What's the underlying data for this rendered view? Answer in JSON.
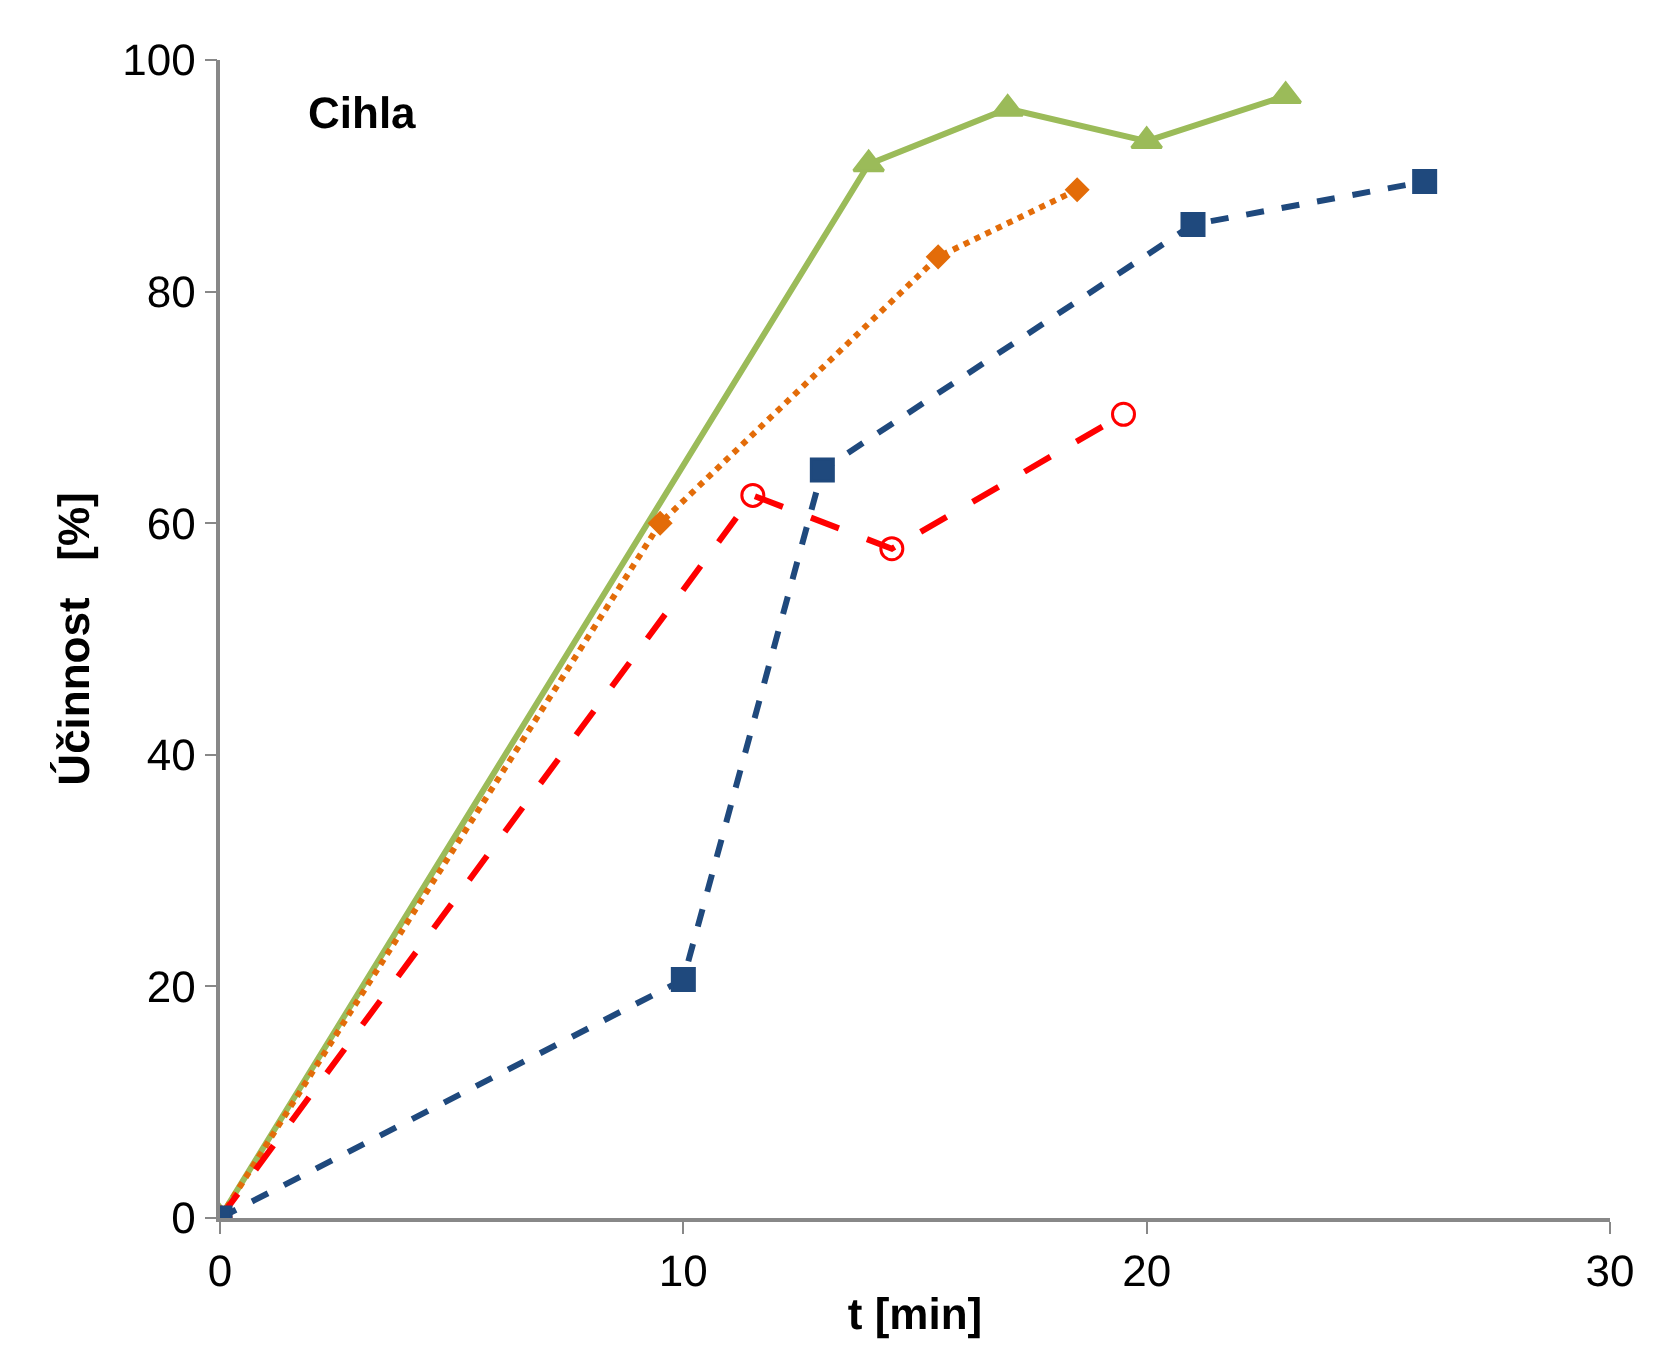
{
  "chart_data": {
    "type": "line",
    "xlabel": "t [min]",
    "ylabel": "Účinnost   [%]",
    "annotations": [
      "Cihla"
    ],
    "xlim": [
      0,
      30
    ],
    "xticks": [
      0,
      10,
      20,
      30
    ],
    "ylim": [
      0,
      100
    ],
    "yticks": [
      0,
      20,
      40,
      60,
      80,
      100
    ],
    "series": [
      {
        "color": "#9bbb59",
        "marker": "triangle",
        "line_style": "solid",
        "x": [
          0,
          14,
          17,
          20,
          23
        ],
        "values": [
          0,
          91,
          95.8,
          93,
          96.9
        ]
      },
      {
        "color": "#e36c09",
        "marker": "diamond",
        "line_style": "dotted",
        "x": [
          0,
          9.5,
          15.5,
          18.5
        ],
        "values": [
          0,
          60,
          83,
          88.8
        ]
      },
      {
        "color": "#ff0000",
        "marker": "circle-open",
        "line_style": "longdash",
        "x": [
          0,
          11.5,
          14.5,
          19.5
        ],
        "values": [
          0,
          62.4,
          57.8,
          69.4
        ]
      },
      {
        "color": "#1f497d",
        "marker": "square",
        "line_style": "dashed",
        "x": [
          0,
          10,
          13,
          21,
          26
        ],
        "values": [
          0,
          20.6,
          64.6,
          85.8,
          89.5
        ]
      }
    ]
  }
}
